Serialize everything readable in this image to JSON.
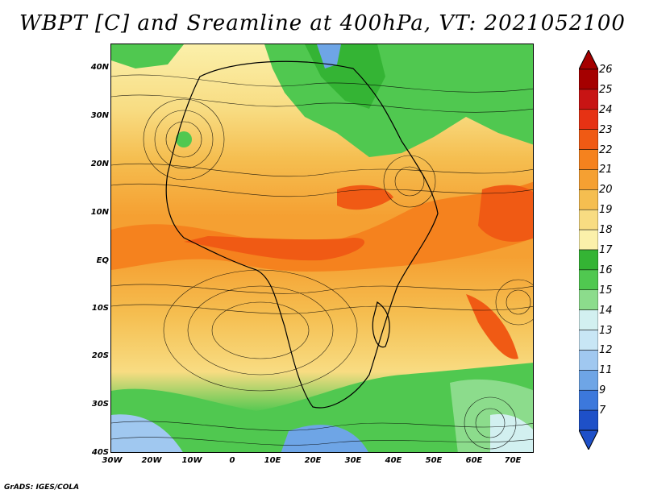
{
  "title": "WBPT [C] and Sreamline at 400hPa, VT: 2021052100",
  "footer": "GrADS: IGES/COLA",
  "lat_labels": [
    "40N",
    "30N",
    "20N",
    "10N",
    "EQ",
    "10S",
    "20S",
    "30S",
    "40S"
  ],
  "lon_labels": [
    "30W",
    "20W",
    "10W",
    "0",
    "10E",
    "20E",
    "30E",
    "40E",
    "50E",
    "60E",
    "70E"
  ],
  "colorbar": {
    "labels": [
      "26",
      "25",
      "24",
      "23",
      "22",
      "21",
      "20",
      "19",
      "18",
      "17",
      "16",
      "15",
      "14",
      "13",
      "12",
      "11",
      "9",
      "7"
    ],
    "colors": [
      "#a50000",
      "#c81414",
      "#e63214",
      "#f05a14",
      "#f5821e",
      "#f5a032",
      "#f5be50",
      "#f8dc82",
      "#fbf0aa",
      "#34b434",
      "#50c850",
      "#8cdc8c",
      "#d2f0f0",
      "#c8e6f5",
      "#a0c8f0",
      "#6ea5e6",
      "#3c78dc",
      "#1e50c8"
    ]
  }
}
